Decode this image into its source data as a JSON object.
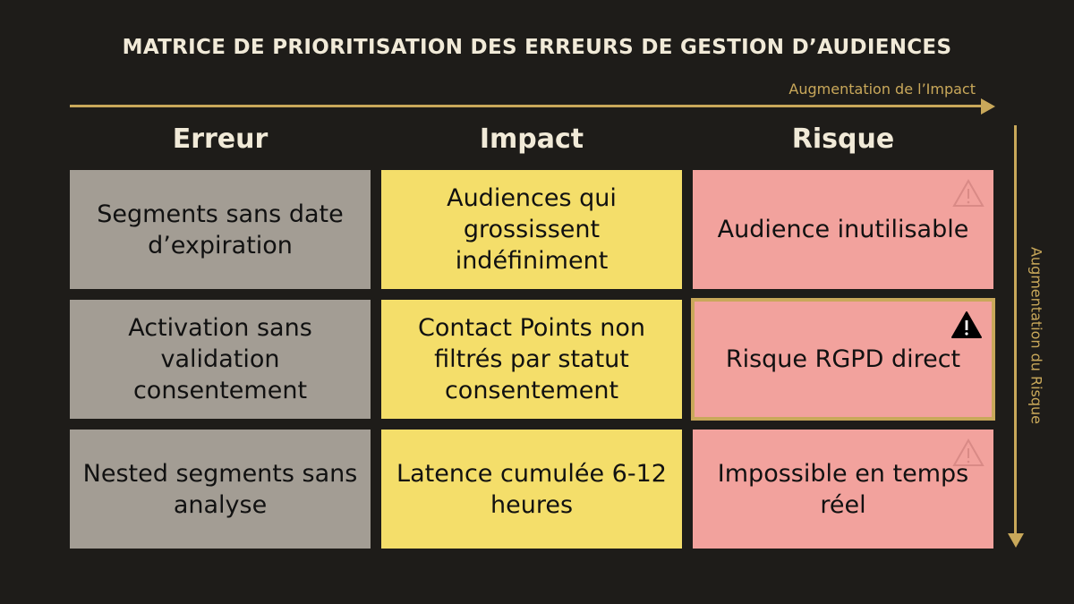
{
  "title": "MATRICE DE PRIORITISATION DES ERREURS DE GESTION D’AUDIENCES",
  "axes": {
    "horizontal": "Augmentation de l’Impact",
    "vertical": "Augmentation du Risque"
  },
  "headers": [
    "Erreur",
    "Impact",
    "Risque"
  ],
  "rows": [
    {
      "erreur": "Segments sans date d’expiration",
      "impact": "Audiences qui grossissent indéfiniment",
      "risque": "Audience inutilisable",
      "warning": "warning-outline-icon"
    },
    {
      "erreur": "Activation sans validation consentement",
      "impact": "Contact Points non filtrés par statut consentement",
      "risque": "Risque RGPD direct",
      "warning": "warning-filled-icon",
      "highlighted": true
    },
    {
      "erreur": "Nested segments sans analyse",
      "impact": "Latence cumulée 6-12 heures",
      "risque": "Impossible en temps réel",
      "warning": "warning-outline-icon"
    }
  ],
  "colors": {
    "background": "#1e1c19",
    "accent": "#c9a85a",
    "erreur": "#a39d94",
    "impact": "#f4de6a",
    "risque": "#f2a29d"
  }
}
